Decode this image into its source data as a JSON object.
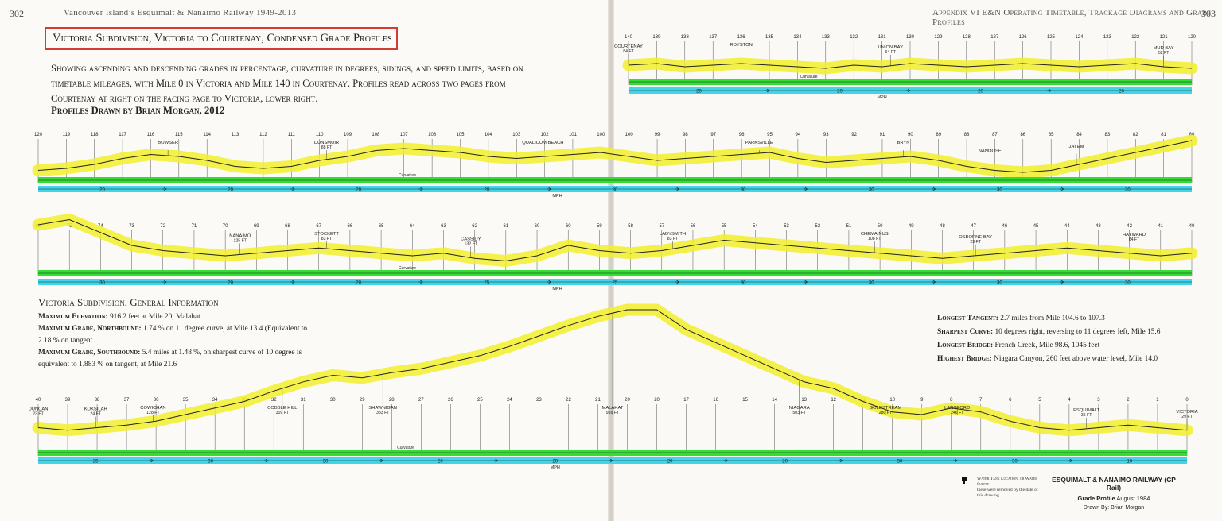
{
  "header": {
    "left_page_number": "302",
    "left_running_head": "Vancouver Island’s Esquimalt & Nanaimo Railway 1949-2013",
    "right_running_head": "Appendix VI  E&N Operating Timetable, Trackage Diagrams and Grade Profiles",
    "right_page_number": "303"
  },
  "title": "Victoria Subdivision, Victoria to Courtenay, Condensed Grade Profiles",
  "intro": "Showing ascending and descending grades in percentage, curvature in degrees, sidings, and speed limits, based on timetable mileages, with Mile 0 in Victoria and Mile 140 in Courtenay. Profiles read across two pages from Courtenay at right on the facing page to Victoria, lower right.",
  "byline": "Profiles Drawn by Brian Morgan, 2012",
  "general_info": {
    "heading": "Victoria Subdivision, General Information",
    "items": [
      {
        "label": "Maximum Elevation:",
        "text": " 916.2 feet at Mile 20, Malahat"
      },
      {
        "label": "Maximum Grade, Northbound:",
        "text": " 1.74 % on 11 degree curve, at Mile 13.4 (Equivalent to 2.18 % on tangent"
      },
      {
        "label": "Maximum Grade, Southbound:",
        "text": " 5.4 miles at 1.48 %, on sharpest curve of 10 degree is equivalent to 1.883 % on tangent, at Mile 21.6"
      }
    ]
  },
  "facts": [
    {
      "label": "Longest Tangent:",
      "text": " 2.7 miles from Mile 104.6 to 107.3"
    },
    {
      "label": "Sharpest Curve:",
      "text": " 10 degrees right, reversing to 11 degrees left, Mile 15.6"
    },
    {
      "label": "Longest Bridge:",
      "text": " French Creek, Mile 98.6, 1045 feet"
    },
    {
      "label": "Highest Bridge:",
      "text": " Niagara Canyon, 260 feet above water level, Mile 14.0"
    }
  ],
  "strip_labels": {
    "curvature": "Curvature",
    "mph": "MPH"
  },
  "colors": {
    "grade": "#f2ee2c",
    "curvature": "#33dd33",
    "speed": "#3fd5ea",
    "box": "#d43b32"
  },
  "rows": [
    {
      "miles": [
        "140",
        "139",
        "138",
        "137",
        "136",
        "135",
        "134",
        "133",
        "132",
        "131",
        "130",
        "129",
        "128",
        "127",
        "126",
        "125",
        "124",
        "123",
        "122",
        "121",
        "120"
      ],
      "profile": [
        0.5,
        0.45,
        0.55,
        0.5,
        0.45,
        0.5,
        0.55,
        0.6,
        0.5,
        0.55,
        0.45,
        0.5,
        0.55,
        0.5,
        0.45,
        0.5,
        0.55,
        0.5,
        0.45,
        0.55,
        0.6
      ],
      "stations": [
        {
          "mile": 140,
          "name": "COURTENAY",
          "elev": "84 FT"
        },
        {
          "mile": 136,
          "name": "ROYSTON",
          "elev": ""
        },
        {
          "mile": 130.7,
          "name": "UNION BAY",
          "elev": "64 FT"
        },
        {
          "mile": 121,
          "name": "MUD BAY",
          "elev": "52 FT"
        }
      ],
      "speeds": [
        "20",
        "20",
        "20",
        "20"
      ]
    },
    {
      "miles": [
        "120",
        "119",
        "118",
        "117",
        "116",
        "115",
        "114",
        "113",
        "112",
        "111",
        "110",
        "109",
        "108",
        "107",
        "106",
        "105",
        "104",
        "103",
        "102",
        "101",
        "100",
        "100",
        "99",
        "98",
        "97",
        "96",
        "95",
        "94",
        "93",
        "92",
        "91",
        "90",
        "89",
        "88",
        "87",
        "86",
        "85",
        "84",
        "83",
        "82",
        "81",
        "80"
      ],
      "profile": [
        0.85,
        0.8,
        0.7,
        0.55,
        0.45,
        0.5,
        0.6,
        0.75,
        0.8,
        0.75,
        0.6,
        0.5,
        0.35,
        0.3,
        0.35,
        0.4,
        0.5,
        0.55,
        0.5,
        0.45,
        0.4,
        0.5,
        0.6,
        0.55,
        0.5,
        0.45,
        0.4,
        0.55,
        0.65,
        0.6,
        0.55,
        0.5,
        0.6,
        0.75,
        0.85,
        0.9,
        0.85,
        0.7,
        0.55,
        0.4,
        0.25,
        0.1
      ],
      "stations": [
        {
          "mile": 115.5,
          "name": "BOWSER",
          "elev": ""
        },
        {
          "mile": 110,
          "name": "DUNSMUIR",
          "elev": "88 FT"
        },
        {
          "mile": 102.5,
          "name": "QUALICUM BEACH",
          "elev": ""
        },
        {
          "mile": 95,
          "name": "PARKSVILLE",
          "elev": ""
        },
        {
          "mile": 90,
          "name": "BRYN",
          "elev": ""
        },
        {
          "mile": 87,
          "name": "NANOOSE",
          "elev": ""
        },
        {
          "mile": 84,
          "name": "JAYEM",
          "elev": ""
        }
      ],
      "speeds": [
        "20",
        "20",
        "20",
        "20",
        "30",
        "30",
        "30",
        "30",
        "30"
      ]
    },
    {
      "miles": [
        "80",
        "75",
        "74",
        "73",
        "72",
        "71",
        "70",
        "69",
        "68",
        "67",
        "66",
        "65",
        "64",
        "63",
        "62",
        "61",
        "60",
        "60",
        "59",
        "58",
        "57",
        "56",
        "55",
        "54",
        "53",
        "52",
        "51",
        "50",
        "49",
        "48",
        "47",
        "46",
        "45",
        "44",
        "43",
        "42",
        "41",
        "40"
      ],
      "profile": [
        0.2,
        0.1,
        0.35,
        0.6,
        0.7,
        0.75,
        0.8,
        0.75,
        0.7,
        0.65,
        0.7,
        0.75,
        0.8,
        0.75,
        0.85,
        0.9,
        0.8,
        0.6,
        0.7,
        0.75,
        0.7,
        0.6,
        0.5,
        0.55,
        0.6,
        0.65,
        0.7,
        0.75,
        0.8,
        0.85,
        0.8,
        0.75,
        0.7,
        0.65,
        0.7,
        0.75,
        0.8,
        0.75
      ],
      "stations": [
        {
          "mile": 73,
          "name": "NANAIMO",
          "elev": "125 FT"
        },
        {
          "mile": 70,
          "name": "STOCKETT",
          "elev": "83 FT"
        },
        {
          "mile": 65,
          "name": "CASSIDY",
          "elev": "132 FT"
        },
        {
          "mile": 58,
          "name": "LADYSMITH",
          "elev": "83 FT"
        },
        {
          "mile": 51,
          "name": "CHEMAINUS",
          "elev": "108 FT"
        },
        {
          "mile": 47.5,
          "name": "OSBORNE BAY",
          "elev": "29 FT"
        },
        {
          "mile": 42,
          "name": "HAYWARD",
          "elev": "84 FT"
        }
      ],
      "speeds": [
        "30",
        "20",
        "20",
        "25",
        "25",
        "30",
        "30",
        "30",
        "30"
      ]
    },
    {
      "miles": [
        "40",
        "39",
        "38",
        "37",
        "36",
        "35",
        "34",
        "33",
        "32",
        "31",
        "30",
        "29",
        "28",
        "27",
        "26",
        "25",
        "24",
        "23",
        "22",
        "21",
        "20",
        "20",
        "17",
        "16",
        "15",
        "14",
        "13",
        "12",
        "11",
        "10",
        "9",
        "8",
        "7",
        "6",
        "5",
        "4",
        "3",
        "2",
        "1",
        "0"
      ],
      "profile": [
        0.9,
        0.92,
        0.9,
        0.88,
        0.85,
        0.8,
        0.75,
        0.7,
        0.62,
        0.55,
        0.5,
        0.52,
        0.48,
        0.45,
        0.4,
        0.35,
        0.28,
        0.2,
        0.12,
        0.05,
        0.0,
        0.0,
        0.15,
        0.25,
        0.35,
        0.45,
        0.55,
        0.6,
        0.7,
        0.78,
        0.8,
        0.75,
        0.78,
        0.85,
        0.9,
        0.92,
        0.9,
        0.88,
        0.9,
        0.92
      ],
      "stations": [
        {
          "mile": 40,
          "name": "DUNCAN",
          "elev": "23 FT"
        },
        {
          "mile": 38,
          "name": "KOKSILAH",
          "elev": "24 FT"
        },
        {
          "mile": 36,
          "name": "COWICHAN",
          "elev": "128 FT"
        },
        {
          "mile": 31.5,
          "name": "COBBLE HILL",
          "elev": "309 FT"
        },
        {
          "mile": 28,
          "name": "SHAWNIGAN",
          "elev": "383 FT"
        },
        {
          "mile": 20,
          "name": "MALAHAT",
          "elev": "916 FT"
        },
        {
          "mile": 13.5,
          "name": "NIAGARA",
          "elev": "503 FT"
        },
        {
          "mile": 10.5,
          "name": "GOLDSTREAM",
          "elev": "280 FT"
        },
        {
          "mile": 8,
          "name": "LANGFORD",
          "elev": "246 FT"
        },
        {
          "mile": 3.5,
          "name": "ESQUIMALT",
          "elev": "35 FT"
        },
        {
          "mile": 0,
          "name": "VICTORIA",
          "elev": "29 FT"
        }
      ],
      "speeds": [
        "25",
        "30",
        "30",
        "20",
        "20",
        "20",
        "20",
        "30",
        "30",
        "10"
      ]
    }
  ],
  "legend": {
    "title": "Water Tank Location, or Water Supply",
    "note": "these were removed by the date of this drawing"
  },
  "credit": {
    "line1": "ESQUIMALT & NANAIMO RAILWAY (CP Rail)",
    "line2_bold": "Grade Profile",
    "line2_rest": "  August 1984",
    "line3": "Drawn By:  Brian Morgan"
  }
}
